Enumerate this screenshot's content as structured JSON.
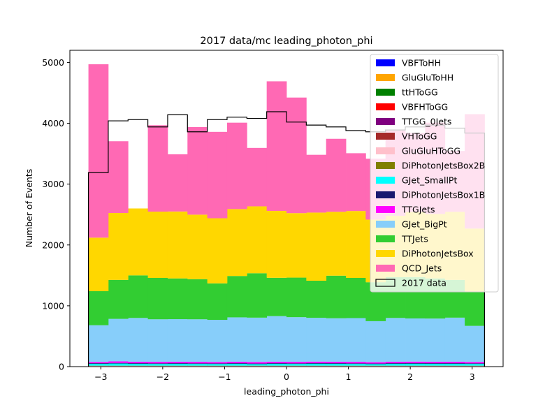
{
  "chart_data": {
    "type": "histogram",
    "stacked": true,
    "title": "2017 data/mc leading_photon_phi",
    "xlabel": "leading_photon_phi",
    "ylabel": "Number of Events",
    "xlim": [
      -3.5,
      3.5
    ],
    "ylim": [
      0,
      5200
    ],
    "xticks": [
      -3,
      -2,
      -1,
      0,
      1,
      2,
      3
    ],
    "xtick_labels": [
      "−3",
      "−2",
      "−1",
      "0",
      "1",
      "2",
      "3"
    ],
    "yticks": [
      0,
      1000,
      2000,
      3000,
      4000,
      5000
    ],
    "ytick_labels": [
      "0",
      "1000",
      "2000",
      "3000",
      "4000",
      "5000"
    ],
    "bin_edges": [
      -3.2,
      -2.88,
      -2.56,
      -2.24,
      -1.92,
      -1.6,
      -1.28,
      -0.96,
      -0.64,
      -0.32,
      0.0,
      0.32,
      0.64,
      0.96,
      1.28,
      1.6,
      1.92,
      2.24,
      2.56,
      2.88,
      3.2
    ],
    "legend_position": "upper right",
    "series": [
      {
        "name": "VBFToHH",
        "color": "#0000ff",
        "values": [
          0,
          0,
          0,
          0,
          0,
          0,
          0,
          0,
          0,
          0,
          0,
          0,
          0,
          0,
          0,
          0,
          0,
          0,
          0,
          0
        ]
      },
      {
        "name": "GluGluToHH",
        "color": "#ffa500",
        "values": [
          0,
          0,
          0,
          0,
          0,
          0,
          0,
          0,
          0,
          0,
          0,
          0,
          0,
          0,
          0,
          0,
          0,
          0,
          0,
          0
        ]
      },
      {
        "name": "ttHToGG",
        "color": "#008000",
        "values": [
          2,
          2,
          2,
          2,
          2,
          2,
          2,
          2,
          2,
          2,
          2,
          2,
          2,
          2,
          2,
          2,
          2,
          2,
          2,
          2
        ]
      },
      {
        "name": "VBFHToGG",
        "color": "#ff0000",
        "values": [
          2,
          2,
          2,
          2,
          2,
          2,
          2,
          2,
          2,
          2,
          2,
          2,
          2,
          2,
          2,
          2,
          2,
          2,
          2,
          2
        ]
      },
      {
        "name": "TTGG_0Jets",
        "color": "#800080",
        "values": [
          1,
          1,
          1,
          1,
          1,
          1,
          1,
          1,
          1,
          1,
          1,
          1,
          1,
          1,
          1,
          1,
          1,
          1,
          1,
          1
        ]
      },
      {
        "name": "VHToGG",
        "color": "#a52a2a",
        "values": [
          2,
          2,
          2,
          2,
          2,
          2,
          2,
          2,
          2,
          2,
          2,
          2,
          2,
          2,
          2,
          2,
          2,
          2,
          2,
          2
        ]
      },
      {
        "name": "GluGluHToGG",
        "color": "#ffc0cb",
        "values": [
          6,
          6,
          6,
          6,
          6,
          6,
          6,
          6,
          6,
          6,
          6,
          6,
          6,
          6,
          6,
          6,
          6,
          6,
          6,
          6
        ]
      },
      {
        "name": "DiPhotonJetsBox2B",
        "color": "#808000",
        "values": [
          3,
          3,
          3,
          3,
          3,
          3,
          3,
          3,
          3,
          3,
          3,
          3,
          3,
          3,
          3,
          3,
          3,
          3,
          3,
          3
        ]
      },
      {
        "name": "GJet_SmallPt",
        "color": "#00ffff",
        "values": [
          30,
          35,
          30,
          28,
          30,
          28,
          27,
          30,
          25,
          30,
          28,
          32,
          30,
          28,
          25,
          30,
          32,
          30,
          30,
          28
        ]
      },
      {
        "name": "DiPhotonJetsBox1B",
        "color": "#191970",
        "values": [
          10,
          10,
          10,
          10,
          10,
          10,
          10,
          10,
          10,
          10,
          10,
          10,
          10,
          10,
          10,
          10,
          10,
          10,
          10,
          10
        ]
      },
      {
        "name": "TTGJets",
        "color": "#ff00ff",
        "values": [
          20,
          25,
          25,
          25,
          25,
          25,
          22,
          25,
          25,
          25,
          25,
          25,
          25,
          25,
          22,
          25,
          25,
          25,
          25,
          22
        ]
      },
      {
        "name": "GJet_BigPt",
        "color": "#87cefa",
        "values": [
          604,
          699,
          719,
          699,
          699,
          699,
          694,
          729,
          729,
          749,
          734,
          719,
          714,
          719,
          674,
          719,
          709,
          709,
          724,
          594
        ]
      },
      {
        "name": "TTJets",
        "color": "#32cd32",
        "values": [
          560,
          640,
          700,
          680,
          670,
          660,
          600,
          680,
          730,
          630,
          650,
          610,
          700,
          660,
          640,
          670,
          680,
          660,
          620,
          560
        ]
      },
      {
        "name": "DiPhotonJetsBox",
        "color": "#ffd700",
        "values": [
          880,
          1100,
          1100,
          1090,
          1100,
          1060,
          1070,
          1100,
          1100,
          1100,
          1060,
          1120,
          1050,
          1100,
          1030,
          1010,
          1070,
          1060,
          1120,
          1040
        ]
      },
      {
        "name": "QCD_Jets",
        "color": "#ff69b4",
        "values": [
          2850,
          1180,
          0,
          1420,
          940,
          1440,
          1420,
          1420,
          960,
          2130,
          1900,
          950,
          1200,
          950,
          1000,
          1400,
          1300,
          1500,
          1000,
          1880
        ]
      }
    ],
    "data_series": {
      "name": "2017 data",
      "type": "step",
      "color": "#000000",
      "values": [
        3190,
        4040,
        4060,
        3940,
        4140,
        3860,
        4060,
        4100,
        4080,
        4190,
        4020,
        3970,
        3940,
        3880,
        3860,
        3890,
        3940,
        3970,
        3920,
        3840
      ]
    }
  }
}
